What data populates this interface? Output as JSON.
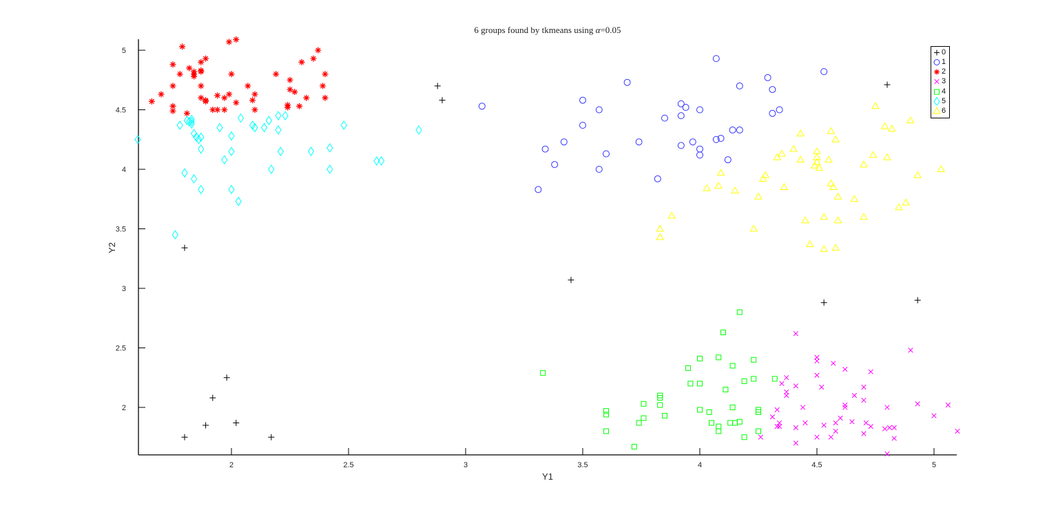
{
  "chart": {
    "title_prefix": "6 groups found by tkmeans using ",
    "title_alpha": "α",
    "title_suffix": "=0.05"
  },
  "chart_data": {
    "type": "scatter",
    "title": "6 groups found by tkmeans using α=0.05",
    "xlabel": "Y1",
    "ylabel": "Y2",
    "xlim": [
      1.6,
      5.1
    ],
    "ylim": [
      1.6,
      5.1
    ],
    "xticks": [
      2,
      2.5,
      3,
      3.5,
      4,
      4.5,
      5
    ],
    "yticks": [
      2,
      2.5,
      3,
      3.5,
      4,
      4.5,
      5
    ],
    "xtick_labels": [
      "2",
      "2.5",
      "3",
      "3.5",
      "4",
      "4.5",
      "5"
    ],
    "ytick_labels": [
      "2",
      "2.5",
      "3",
      "3.5",
      "4",
      "4.5",
      "5"
    ],
    "grid": false,
    "legend_position": "top-right (inside)",
    "series": [
      {
        "name": "0",
        "marker": "plus",
        "color": "#000000",
        "points": [
          [
            2.88,
            4.7
          ],
          [
            2.9,
            4.58
          ],
          [
            4.8,
            4.71
          ],
          [
            1.8,
            3.34
          ],
          [
            3.45,
            3.07
          ],
          [
            4.53,
            2.88
          ],
          [
            4.93,
            2.9
          ],
          [
            1.98,
            2.25
          ],
          [
            1.92,
            2.08
          ],
          [
            1.89,
            1.85
          ],
          [
            2.02,
            1.87
          ],
          [
            1.8,
            1.75
          ],
          [
            2.17,
            1.75
          ]
        ]
      },
      {
        "name": "1",
        "marker": "circle",
        "color": "#3333ff",
        "points": [
          [
            3.07,
            4.53
          ],
          [
            3.5,
            4.58
          ],
          [
            3.5,
            4.37
          ],
          [
            3.57,
            4.5
          ],
          [
            3.69,
            4.73
          ],
          [
            3.42,
            4.23
          ],
          [
            3.34,
            4.17
          ],
          [
            3.38,
            4.04
          ],
          [
            3.6,
            4.13
          ],
          [
            3.57,
            4.0
          ],
          [
            3.31,
            3.83
          ],
          [
            3.74,
            4.23
          ],
          [
            3.82,
            3.92
          ],
          [
            3.85,
            4.43
          ],
          [
            3.92,
            4.55
          ],
          [
            3.94,
            4.52
          ],
          [
            3.92,
            4.45
          ],
          [
            4.0,
            4.5
          ],
          [
            4.07,
            4.93
          ],
          [
            4.17,
            4.7
          ],
          [
            3.92,
            4.2
          ],
          [
            3.97,
            4.23
          ],
          [
            4.0,
            4.17
          ],
          [
            4.0,
            4.12
          ],
          [
            4.07,
            4.25
          ],
          [
            4.09,
            4.26
          ],
          [
            4.12,
            4.08
          ],
          [
            4.14,
            4.33
          ],
          [
            4.17,
            4.33
          ],
          [
            4.29,
            4.77
          ],
          [
            4.31,
            4.67
          ],
          [
            4.31,
            4.47
          ],
          [
            4.34,
            4.5
          ],
          [
            4.53,
            4.82
          ]
        ]
      },
      {
        "name": "2",
        "marker": "asterisk",
        "color": "#ff0000",
        "points": [
          [
            1.79,
            5.03
          ],
          [
            1.99,
            5.07
          ],
          [
            2.02,
            5.09
          ],
          [
            1.75,
            4.88
          ],
          [
            1.78,
            4.8
          ],
          [
            1.82,
            4.85
          ],
          [
            1.84,
            4.82
          ],
          [
            1.84,
            4.8
          ],
          [
            1.84,
            4.78
          ],
          [
            1.87,
            4.83
          ],
          [
            1.87,
            4.82
          ],
          [
            1.87,
            4.9
          ],
          [
            1.89,
            4.93
          ],
          [
            2.0,
            4.8
          ],
          [
            2.19,
            4.8
          ],
          [
            1.66,
            4.57
          ],
          [
            1.7,
            4.63
          ],
          [
            1.75,
            4.7
          ],
          [
            1.75,
            4.53
          ],
          [
            1.75,
            4.49
          ],
          [
            1.81,
            4.47
          ],
          [
            1.87,
            4.7
          ],
          [
            1.87,
            4.6
          ],
          [
            1.89,
            4.58
          ],
          [
            1.89,
            4.57
          ],
          [
            1.92,
            4.5
          ],
          [
            1.94,
            4.5
          ],
          [
            1.94,
            4.62
          ],
          [
            1.97,
            4.6
          ],
          [
            1.97,
            4.5
          ],
          [
            1.99,
            4.63
          ],
          [
            2.02,
            4.56
          ],
          [
            2.07,
            4.7
          ],
          [
            2.09,
            4.58
          ],
          [
            2.1,
            4.63
          ],
          [
            2.1,
            4.5
          ],
          [
            2.24,
            4.52
          ],
          [
            2.24,
            4.54
          ],
          [
            2.25,
            4.67
          ],
          [
            2.25,
            4.75
          ],
          [
            2.27,
            4.65
          ],
          [
            2.29,
            4.53
          ],
          [
            2.3,
            4.9
          ],
          [
            2.32,
            4.6
          ],
          [
            2.35,
            4.93
          ],
          [
            2.37,
            5.0
          ],
          [
            2.39,
            4.7
          ],
          [
            2.4,
            4.8
          ],
          [
            2.4,
            4.6
          ]
        ]
      },
      {
        "name": "3",
        "marker": "cross",
        "color": "#ff00ff",
        "points": [
          [
            4.41,
            2.62
          ],
          [
            4.9,
            2.48
          ],
          [
            4.5,
            2.42
          ],
          [
            4.5,
            2.39
          ],
          [
            4.57,
            2.37
          ],
          [
            4.62,
            2.32
          ],
          [
            4.73,
            2.3
          ],
          [
            4.5,
            2.27
          ],
          [
            4.37,
            2.25
          ],
          [
            4.35,
            2.2
          ],
          [
            4.41,
            2.18
          ],
          [
            4.52,
            2.17
          ],
          [
            4.7,
            2.17
          ],
          [
            4.66,
            2.1
          ],
          [
            4.37,
            2.13
          ],
          [
            4.37,
            2.1
          ],
          [
            4.7,
            2.06
          ],
          [
            4.93,
            2.03
          ],
          [
            5.06,
            2.02
          ],
          [
            4.62,
            2.02
          ],
          [
            4.62,
            2.0
          ],
          [
            4.44,
            2.0
          ],
          [
            4.33,
            1.98
          ],
          [
            4.8,
            2.0
          ],
          [
            5.0,
            1.93
          ],
          [
            4.31,
            1.92
          ],
          [
            4.6,
            1.91
          ],
          [
            4.45,
            1.87
          ],
          [
            4.34,
            1.87
          ],
          [
            4.41,
            1.83
          ],
          [
            4.53,
            1.85
          ],
          [
            4.58,
            1.87
          ],
          [
            4.65,
            1.88
          ],
          [
            4.71,
            1.87
          ],
          [
            4.73,
            1.84
          ],
          [
            4.79,
            1.82
          ],
          [
            4.81,
            1.83
          ],
          [
            4.83,
            1.83
          ],
          [
            4.58,
            1.8
          ],
          [
            4.7,
            1.78
          ],
          [
            5.1,
            1.8
          ],
          [
            4.33,
            1.84
          ],
          [
            4.34,
            1.84
          ],
          [
            4.26,
            1.75
          ],
          [
            4.5,
            1.75
          ],
          [
            4.56,
            1.75
          ],
          [
            4.83,
            1.74
          ],
          [
            4.41,
            1.7
          ],
          [
            4.8,
            1.61
          ]
        ]
      },
      {
        "name": "4",
        "marker": "square",
        "color": "#00ff00",
        "points": [
          [
            4.17,
            2.8
          ],
          [
            4.1,
            2.63
          ],
          [
            3.33,
            2.29
          ],
          [
            4.0,
            2.41
          ],
          [
            4.08,
            2.42
          ],
          [
            4.23,
            2.4
          ],
          [
            3.95,
            2.33
          ],
          [
            4.14,
            2.35
          ],
          [
            3.96,
            2.2
          ],
          [
            4.0,
            2.2
          ],
          [
            4.19,
            2.22
          ],
          [
            4.23,
            2.24
          ],
          [
            4.32,
            2.24
          ],
          [
            4.11,
            2.15
          ],
          [
            3.83,
            2.1
          ],
          [
            3.83,
            2.08
          ],
          [
            3.76,
            2.03
          ],
          [
            3.83,
            2.02
          ],
          [
            4.14,
            2.0
          ],
          [
            4.0,
            1.98
          ],
          [
            4.04,
            1.96
          ],
          [
            4.25,
            1.98
          ],
          [
            4.25,
            1.96
          ],
          [
            3.6,
            1.97
          ],
          [
            3.6,
            1.94
          ],
          [
            3.85,
            1.93
          ],
          [
            3.76,
            1.91
          ],
          [
            4.05,
            1.87
          ],
          [
            4.13,
            1.87
          ],
          [
            4.15,
            1.87
          ],
          [
            4.17,
            1.88
          ],
          [
            3.74,
            1.87
          ],
          [
            4.08,
            1.84
          ],
          [
            4.08,
            1.8
          ],
          [
            4.25,
            1.8
          ],
          [
            3.6,
            1.8
          ],
          [
            4.19,
            1.75
          ],
          [
            3.72,
            1.67
          ]
        ]
      },
      {
        "name": "5",
        "marker": "diamond",
        "color": "#00ffff",
        "points": [
          [
            1.6,
            4.25
          ],
          [
            1.78,
            4.37
          ],
          [
            1.81,
            4.41
          ],
          [
            1.82,
            4.4
          ],
          [
            1.83,
            4.4
          ],
          [
            1.83,
            4.42
          ],
          [
            1.83,
            4.38
          ],
          [
            1.84,
            4.3
          ],
          [
            1.85,
            4.27
          ],
          [
            1.86,
            4.25
          ],
          [
            1.87,
            4.27
          ],
          [
            1.87,
            4.17
          ],
          [
            1.95,
            4.35
          ],
          [
            1.97,
            4.08
          ],
          [
            2.0,
            4.28
          ],
          [
            2.0,
            4.15
          ],
          [
            2.04,
            4.43
          ],
          [
            2.09,
            4.37
          ],
          [
            2.1,
            4.35
          ],
          [
            2.14,
            4.35
          ],
          [
            2.16,
            4.41
          ],
          [
            2.2,
            4.33
          ],
          [
            2.2,
            4.45
          ],
          [
            2.23,
            4.45
          ],
          [
            2.21,
            4.15
          ],
          [
            2.17,
            4.0
          ],
          [
            2.34,
            4.15
          ],
          [
            2.42,
            4.18
          ],
          [
            2.42,
            4.0
          ],
          [
            2.48,
            4.37
          ],
          [
            2.62,
            4.07
          ],
          [
            2.64,
            4.07
          ],
          [
            2.8,
            4.33
          ],
          [
            1.8,
            3.97
          ],
          [
            1.84,
            3.92
          ],
          [
            1.87,
            3.83
          ],
          [
            2.0,
            3.83
          ],
          [
            2.03,
            3.73
          ],
          [
            1.76,
            3.45
          ]
        ]
      },
      {
        "name": "6",
        "marker": "triangle",
        "color": "#ffff00",
        "points": [
          [
            4.75,
            4.53
          ],
          [
            4.79,
            4.36
          ],
          [
            4.82,
            4.34
          ],
          [
            4.9,
            4.41
          ],
          [
            4.43,
            4.3
          ],
          [
            4.56,
            4.32
          ],
          [
            4.58,
            4.25
          ],
          [
            4.35,
            4.13
          ],
          [
            4.33,
            4.1
          ],
          [
            4.4,
            4.17
          ],
          [
            4.43,
            4.08
          ],
          [
            4.5,
            4.15
          ],
          [
            4.5,
            4.1
          ],
          [
            4.5,
            4.06
          ],
          [
            4.49,
            4.03
          ],
          [
            4.51,
            4.01
          ],
          [
            4.55,
            4.08
          ],
          [
            4.74,
            4.12
          ],
          [
            4.8,
            4.1
          ],
          [
            4.7,
            4.04
          ],
          [
            5.03,
            4.0
          ],
          [
            4.93,
            3.95
          ],
          [
            4.09,
            3.97
          ],
          [
            4.27,
            3.92
          ],
          [
            4.28,
            3.95
          ],
          [
            4.36,
            3.85
          ],
          [
            4.56,
            3.88
          ],
          [
            4.57,
            3.85
          ],
          [
            4.59,
            3.77
          ],
          [
            4.66,
            3.75
          ],
          [
            4.88,
            3.72
          ],
          [
            4.85,
            3.68
          ],
          [
            4.03,
            3.84
          ],
          [
            4.08,
            3.86
          ],
          [
            4.15,
            3.82
          ],
          [
            4.25,
            3.77
          ],
          [
            3.88,
            3.61
          ],
          [
            4.45,
            3.57
          ],
          [
            4.53,
            3.6
          ],
          [
            4.59,
            3.57
          ],
          [
            4.7,
            3.6
          ],
          [
            3.83,
            3.5
          ],
          [
            4.23,
            3.5
          ],
          [
            3.83,
            3.43
          ],
          [
            4.47,
            3.37
          ],
          [
            4.53,
            3.33
          ],
          [
            4.58,
            3.34
          ]
        ]
      }
    ]
  },
  "axes": {
    "xlabel": "Y1",
    "ylabel": "Y2",
    "xticks": [
      {
        "value": 2,
        "label": "2"
      },
      {
        "value": 2.5,
        "label": "2.5"
      },
      {
        "value": 3,
        "label": "3"
      },
      {
        "value": 3.5,
        "label": "3.5"
      },
      {
        "value": 4,
        "label": "4"
      },
      {
        "value": 4.5,
        "label": "4.5"
      },
      {
        "value": 5,
        "label": "5"
      }
    ],
    "yticks": [
      {
        "value": 2,
        "label": "2"
      },
      {
        "value": 2.5,
        "label": "2.5"
      },
      {
        "value": 3,
        "label": "3"
      },
      {
        "value": 3.5,
        "label": "3.5"
      },
      {
        "value": 4,
        "label": "4"
      },
      {
        "value": 4.5,
        "label": "4.5"
      },
      {
        "value": 5,
        "label": "5"
      }
    ]
  },
  "legend": {
    "items": [
      {
        "label": "0",
        "marker": "plus",
        "color": "#000000"
      },
      {
        "label": "1",
        "marker": "circle",
        "color": "#3333ff"
      },
      {
        "label": "2",
        "marker": "asterisk",
        "color": "#ff0000"
      },
      {
        "label": "3",
        "marker": "cross",
        "color": "#ff00ff"
      },
      {
        "label": "4",
        "marker": "square",
        "color": "#00ff00"
      },
      {
        "label": "5",
        "marker": "diamond",
        "color": "#00ffff"
      },
      {
        "label": "6",
        "marker": "triangle",
        "color": "#ffff00"
      }
    ]
  }
}
